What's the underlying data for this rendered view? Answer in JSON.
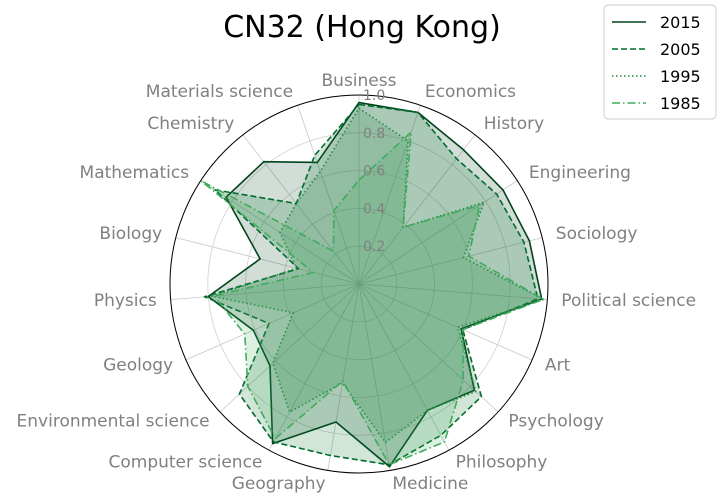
{
  "chart_data": {
    "type": "radar",
    "title": "CN32 (Hong Kong)",
    "categories": [
      "Business",
      "Economics",
      "History",
      "Engineering",
      "Sociology",
      "Political science",
      "Art",
      "Psychology",
      "Philosophy",
      "Medicine",
      "Geography",
      "Computer science",
      "Environmental science",
      "Geology",
      "Physics",
      "Biology",
      "Mathematics",
      "Chemistry",
      "Materials science"
    ],
    "rlim": [
      0,
      1.0
    ],
    "rticks": [
      "0.2",
      "0.4",
      "0.6",
      "0.8",
      "1.0"
    ],
    "grid": true,
    "legend_position": "top-right",
    "series": [
      {
        "name": "2015",
        "color": "#00441b",
        "linestyle": "solid",
        "values": [
          0.96,
          0.96,
          0.9,
          0.91,
          0.93,
          0.97,
          0.59,
          0.83,
          0.76,
          0.98,
          0.74,
          0.96,
          0.64,
          0.61,
          0.8,
          0.54,
          0.84,
          0.82,
          0.68
        ]
      },
      {
        "name": "2005",
        "color": "#006d2c",
        "linestyle": "dashed",
        "values": [
          0.95,
          0.96,
          0.84,
          0.87,
          0.9,
          0.95,
          0.6,
          0.88,
          0.91,
          0.97,
          0.92,
          0.95,
          0.86,
          0.52,
          0.82,
          0.33,
          0.91,
          0.54,
          0.72
        ]
      },
      {
        "name": "1995",
        "color": "#238b45",
        "linestyle": "dotted",
        "values": [
          0.93,
          0.8,
          0.38,
          0.79,
          0.57,
          0.98,
          0.57,
          0.84,
          0.76,
          0.85,
          0.53,
          0.77,
          0.62,
          0.38,
          0.78,
          0.34,
          0.5,
          0.54,
          0.63
        ]
      },
      {
        "name": "1985",
        "color": "#41ab5d",
        "linestyle": "dashdot",
        "values": [
          0.55,
          0.85,
          0.38,
          0.76,
          0.6,
          0.98,
          0.6,
          0.75,
          0.95,
          0.97,
          0.52,
          0.93,
          0.8,
          0.66,
          0.77,
          0.25,
          1.0,
          0.22,
          0.41
        ]
      }
    ]
  }
}
